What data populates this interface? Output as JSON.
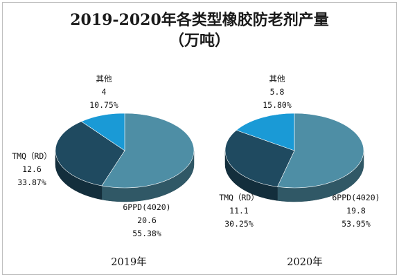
{
  "title_line1": "2019-2020年各类型橡胶防老剂产量",
  "title_line2": "（万吨）",
  "colors": {
    "6PPD": "#4e8ea5",
    "TMQ": "#1f4a60",
    "other": "#1a9ad6"
  },
  "chart_data": [
    {
      "type": "pie",
      "caption": "2019年",
      "slices": [
        {
          "label": "6PPD(4020)",
          "value": 20.6,
          "percent": "55.38%",
          "value_text": "20.6",
          "color_key": "6PPD"
        },
        {
          "label": "TMQ（RD）",
          "value": 12.6,
          "percent": "33.87%",
          "value_text": "12.6",
          "color_key": "TMQ"
        },
        {
          "label": "其他",
          "value": 4,
          "percent": "10.75%",
          "value_text": "4",
          "color_key": "other"
        }
      ]
    },
    {
      "type": "pie",
      "caption": "2020年",
      "slices": [
        {
          "label": "6PPD(4020)",
          "value": 19.8,
          "percent": "53.95%",
          "value_text": "19.8",
          "color_key": "6PPD"
        },
        {
          "label": "TMQ（RD）",
          "value": 11.1,
          "percent": "30.25%",
          "value_text": "11.1",
          "color_key": "TMQ"
        },
        {
          "label": "其他",
          "value": 5.8,
          "percent": "15.80%",
          "value_text": "5.8",
          "color_key": "other"
        }
      ]
    }
  ]
}
